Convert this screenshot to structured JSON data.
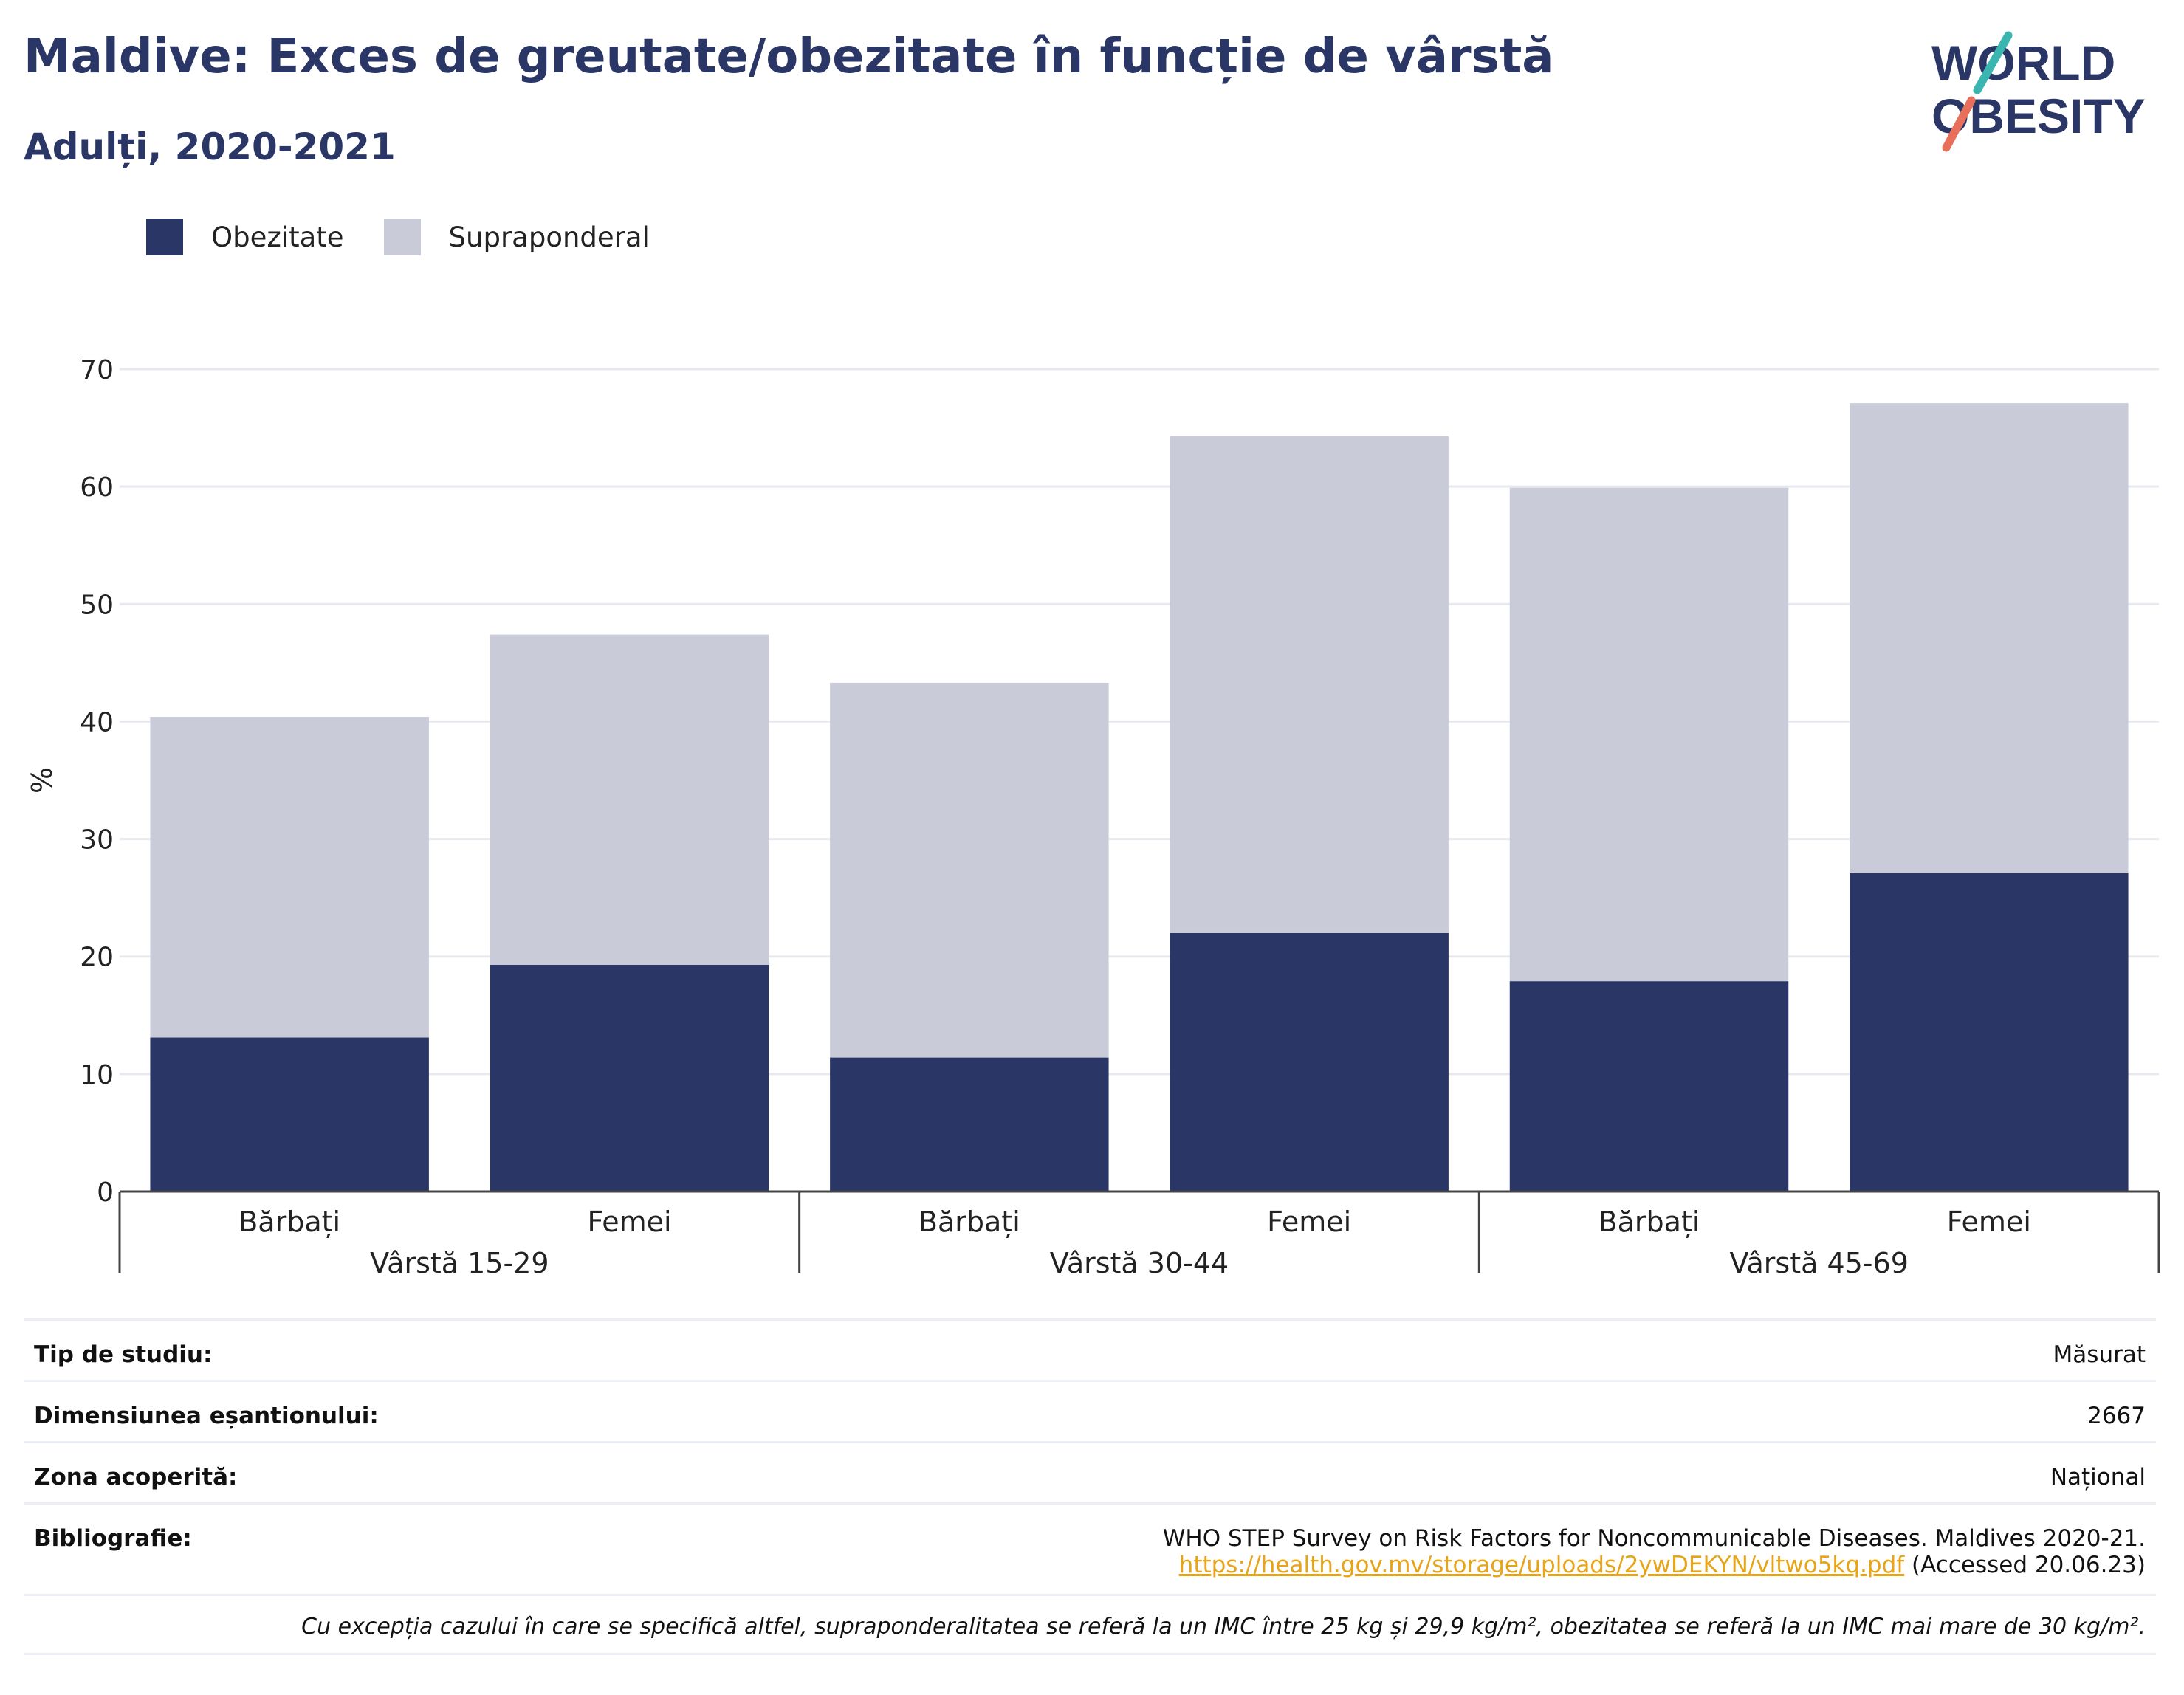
{
  "title": "Maldive: Exces de greutate/obezitate în funcție de vârstă",
  "subtitle": "Adulți, 2020-2021",
  "logo": {
    "line1": "WORLD",
    "line2": "OBESITY",
    "accent_colors": [
      "#3ab5b0",
      "#e8705a"
    ]
  },
  "colors": {
    "obesity": "#2a3665",
    "overweight": "#c9cbd8",
    "text": "#2a3665",
    "link": "#e8a417"
  },
  "chart_data": {
    "type": "bar",
    "stacked": true,
    "ylabel": "%",
    "ylim": [
      0,
      70
    ],
    "yticks": [
      0,
      10,
      20,
      30,
      40,
      50,
      60,
      70
    ],
    "grid": true,
    "legend_position": "top-left",
    "categories": [
      "Bărbați",
      "Femei",
      "Bărbați",
      "Femei",
      "Bărbați",
      "Femei"
    ],
    "groups": [
      {
        "label": "Vârstă 15-29",
        "categories": [
          0,
          1
        ]
      },
      {
        "label": "Vârstă 30-44",
        "categories": [
          2,
          3
        ]
      },
      {
        "label": "Vârstă 45-69",
        "categories": [
          4,
          5
        ]
      }
    ],
    "series": [
      {
        "name": "Obezitate",
        "values": [
          13.1,
          19.3,
          11.4,
          22.0,
          17.9,
          27.1
        ]
      },
      {
        "name": "Supraponderal",
        "values": [
          27.3,
          28.1,
          31.9,
          42.3,
          42.0,
          40.0
        ]
      }
    ]
  },
  "info": {
    "study_type": {
      "label": "Tip de studiu:",
      "value": "Măsurat"
    },
    "sample_size": {
      "label": "Dimensiunea eșantionului:",
      "value": "2667"
    },
    "coverage": {
      "label": "Zona acoperită:",
      "value": "Național"
    },
    "bibliography": {
      "label": "Bibliografie:",
      "text": "WHO STEP Survey on Risk Factors for Noncommunicable Diseases. Maldives 2020-21.",
      "url": "https://health.gov.mv/storage/uploads/2ywDEKYN/vltwo5kq.pdf",
      "accessed": "(Accessed 20.06.23)"
    },
    "note": "Cu excepția cazului în care se specifică altfel, supraponderalitatea se referă la un IMC între 25 kg și 29,9 kg/m², obezitatea se referă la un IMC mai mare de 30 kg/m²."
  }
}
